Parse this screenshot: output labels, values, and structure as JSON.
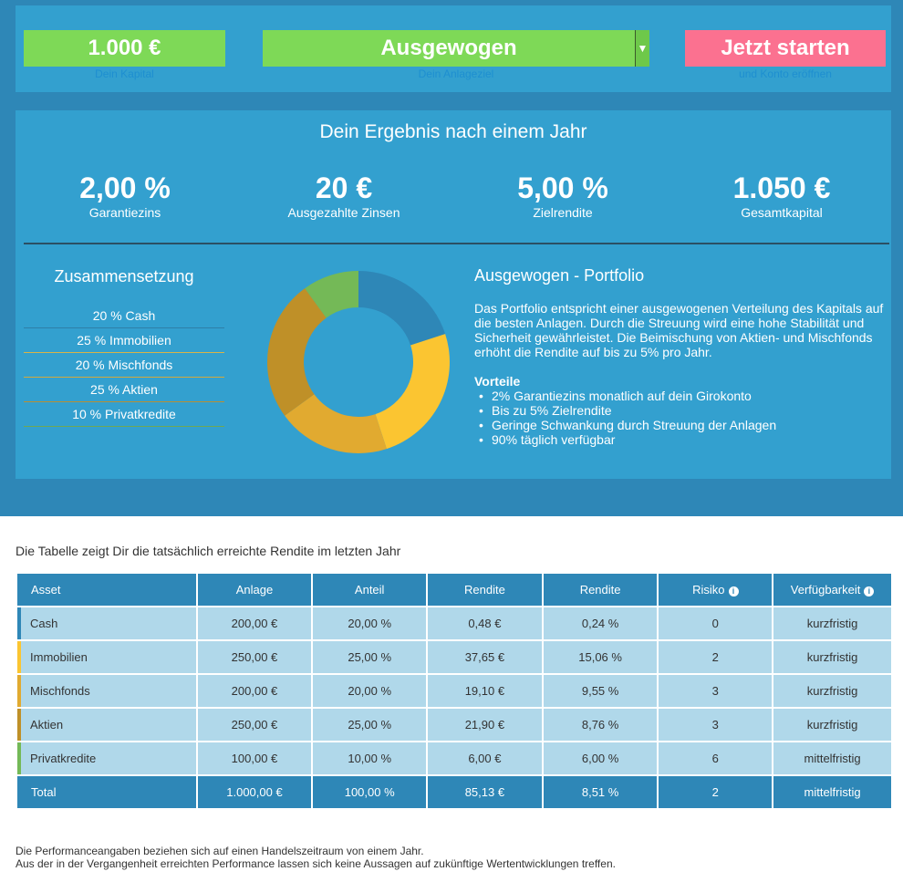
{
  "controls": {
    "capital_value": "1.000 €",
    "capital_hint": "Dein Kapital",
    "goal_value": "Ausgewogen",
    "goal_dropdown_glyph": "▼",
    "goal_hint": "Dein Anlageziel",
    "start_label": "Jetzt starten",
    "start_hint": "und Konto eröffnen"
  },
  "result": {
    "title": "Dein Ergebnis nach einem Jahr",
    "stats": [
      {
        "value": "2,00 %",
        "label": "Garantiezins"
      },
      {
        "value": "20 €",
        "label": "Ausgezahlte Zinsen"
      },
      {
        "value": "5,00 %",
        "label": "Zielrendite"
      },
      {
        "value": "1.050 €",
        "label": "Gesamtkapital"
      }
    ]
  },
  "composition": {
    "title": "Zusammensetzung",
    "items": [
      "20 % Cash",
      "25 % Immobilien",
      "20 % Mischfonds",
      "25 % Aktien",
      "10 % Privatkredite"
    ],
    "slices": [
      {
        "name": "Cash",
        "share": 20,
        "color": "#2e87b7"
      },
      {
        "name": "Immobilien",
        "share": 25,
        "color": "#fbc531"
      },
      {
        "name": "Mischfonds",
        "share": 20,
        "color": "#e1aa30"
      },
      {
        "name": "Aktien",
        "share": 25,
        "color": "#bf9028"
      },
      {
        "name": "Privatkredite",
        "share": 10,
        "color": "#74b957"
      }
    ]
  },
  "portfolio": {
    "title": "Ausgewogen - Portfolio",
    "description": "Das Portfolio entspricht einer ausgewogenen Verteilung des Kapitals auf die besten Anlagen. Durch die Streuung wird eine hohe Stabilität und Sicherheit gewährleistet. Die Beimischung von Aktien- und Mischfonds erhöht die Rendite auf bis zu 5% pro Jahr.",
    "advantages_title": "Vorteile",
    "advantages": [
      "2% Garantiezins monatlich auf dein Girokonto",
      "Bis zu 5% Zielrendite",
      "Geringe Schwankung durch Streuung der Anlagen",
      "90% täglich verfügbar"
    ]
  },
  "table": {
    "caption": "Die Tabelle zeigt Dir die tatsächlich erreichte Rendite im letzten Jahr",
    "headers": [
      "Asset",
      "Anlage",
      "Anteil",
      "Rendite",
      "Rendite",
      "Risiko",
      "Verfügbarkeit"
    ],
    "info_glyph": "i",
    "rows": [
      {
        "asset": "Cash",
        "anlage": "200,00 €",
        "anteil": "20,00 %",
        "rendite_abs": "0,48 €",
        "rendite_pct": "0,24 %",
        "risiko": "0",
        "verfuegbarkeit": "kurzfristig",
        "color": "#2e87b7"
      },
      {
        "asset": "Immobilien",
        "anlage": "250,00 €",
        "anteil": "25,00 %",
        "rendite_abs": "37,65 €",
        "rendite_pct": "15,06 %",
        "risiko": "2",
        "verfuegbarkeit": "kurzfristig",
        "color": "#fbc531"
      },
      {
        "asset": "Mischfonds",
        "anlage": "200,00 €",
        "anteil": "20,00 %",
        "rendite_abs": "19,10 €",
        "rendite_pct": "9,55 %",
        "risiko": "3",
        "verfuegbarkeit": "kurzfristig",
        "color": "#e1aa30"
      },
      {
        "asset": "Aktien",
        "anlage": "250,00 €",
        "anteil": "25,00 %",
        "rendite_abs": "21,90 €",
        "rendite_pct": "8,76 %",
        "risiko": "3",
        "verfuegbarkeit": "kurzfristig",
        "color": "#bf9028"
      },
      {
        "asset": "Privatkredite",
        "anlage": "100,00 €",
        "anteil": "10,00 %",
        "rendite_abs": "6,00 €",
        "rendite_pct": "6,00 %",
        "risiko": "6",
        "verfuegbarkeit": "mittelfristig",
        "color": "#74b957"
      }
    ],
    "total": {
      "asset": "Total",
      "anlage": "1.000,00 €",
      "anteil": "100,00 %",
      "rendite_abs": "85,13 €",
      "rendite_pct": "8,51 %",
      "risiko": "2",
      "verfuegbarkeit": "mittelfristig"
    }
  },
  "footnote": {
    "line1": "Die Performanceangaben beziehen sich auf einen Handelszeitraum von einem Jahr.",
    "line2": "Aus der in der Vergangenheit erreichten Performance lassen sich keine Aussagen auf zukünftige Wertentwicklungen treffen."
  }
}
